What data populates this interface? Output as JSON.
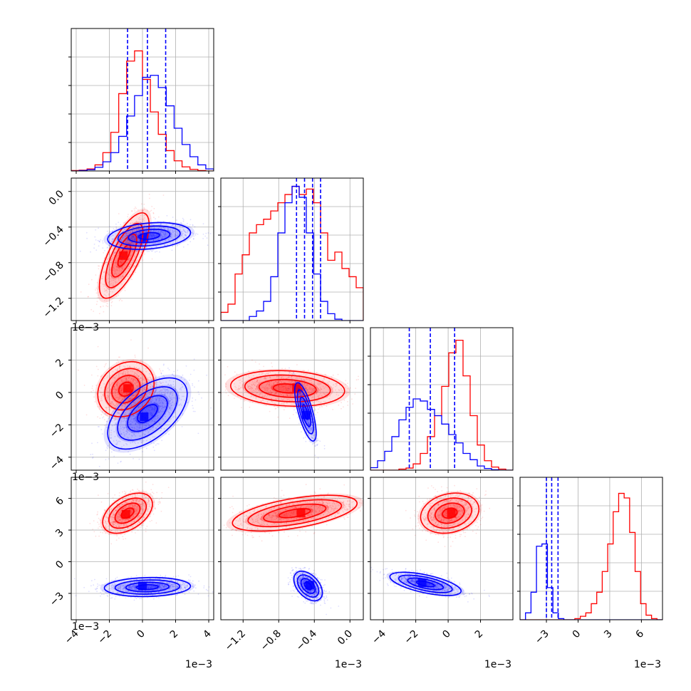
{
  "colors": {
    "series_a": "#ff0000",
    "series_b": "#0000ff",
    "grid": "#b0b0b0"
  },
  "chart_data": {
    "type": "corner",
    "grid": true,
    "params": [
      {
        "range": [
          -4.3,
          4.3
        ],
        "ticks": [
          -4,
          -2,
          0,
          2,
          4
        ],
        "tick_labels": [
          "−4",
          "−2",
          "0",
          "2",
          "4"
        ],
        "offset_label": "1e−3",
        "quantiles_b": [
          -0.9,
          0.3,
          1.4
        ],
        "hist_a": [
          0.02,
          0.04,
          0.1,
          0.3,
          0.9,
          1.9,
          3.8,
          5.4,
          5.9,
          4.5,
          2.9,
          1.8,
          1.0,
          0.5,
          0.2,
          0.08,
          0.02,
          0.0
        ],
        "hist_b": [
          0.0,
          0.02,
          0.06,
          0.18,
          0.45,
          0.9,
          1.7,
          2.7,
          3.7,
          4.6,
          4.7,
          4.1,
          3.2,
          2.1,
          1.3,
          0.7,
          0.3,
          0.1
        ],
        "hist_max": 7
      },
      {
        "range": [
          -1.45,
          0.15
        ],
        "ticks": [
          -1.2,
          -0.8,
          -0.4,
          0.0
        ],
        "tick_labels": [
          "−1.2",
          "−0.8",
          "−0.4",
          "0.0"
        ],
        "offset_label": "1e−3",
        "quantiles_b": [
          -0.6,
          -0.51,
          -0.42,
          -0.33
        ],
        "hist_a": [
          0.3,
          0.6,
          1.7,
          2.4,
          3.2,
          3.5,
          3.7,
          4.0,
          4.3,
          4.6,
          4.9,
          4.6,
          4.8,
          4.3,
          3.2,
          2.2,
          2.5,
          1.9,
          1.6,
          1.2
        ],
        "hist_b": [
          0.0,
          0.0,
          0.0,
          0.0,
          0.15,
          0.35,
          0.7,
          1.6,
          3.2,
          4.3,
          4.9,
          4.5,
          3.2,
          1.7,
          0.7,
          0.25,
          0.05,
          0.0,
          0.0,
          0.0
        ],
        "hist_max": 5.2
      },
      {
        "range": [
          -4.8,
          4.0
        ],
        "ticks": [
          -4,
          -2,
          0,
          2
        ],
        "tick_labels": [
          "−4",
          "−2",
          "0",
          "2"
        ],
        "offset_label": "1e−3",
        "quantiles_b": [
          -2.4,
          -1.1,
          0.4
        ],
        "hist_a": [
          0.0,
          0.0,
          0.0,
          0.0,
          0.05,
          0.1,
          0.3,
          0.8,
          1.6,
          2.6,
          4.0,
          5.6,
          6.2,
          4.5,
          2.6,
          1.2,
          0.45,
          0.15,
          0.05,
          0.0
        ],
        "hist_b": [
          0.12,
          0.45,
          0.9,
          1.6,
          2.4,
          3.0,
          3.4,
          3.3,
          2.9,
          2.6,
          2.2,
          1.7,
          1.3,
          0.8,
          0.5,
          0.2,
          0.08,
          0.02,
          0.0,
          0.0
        ],
        "hist_max": 6.8
      },
      {
        "range": [
          -5.5,
          8.0
        ],
        "ticks": [
          -3,
          0,
          3,
          6
        ],
        "tick_labels": [
          "−3",
          "0",
          "3",
          "6"
        ],
        "offset_label": "1e−3",
        "quantiles_b": [
          -3.0,
          -2.5,
          -1.9
        ],
        "hist_a": [
          0,
          0,
          0,
          0,
          0,
          0,
          0,
          0,
          0,
          0,
          0.05,
          0.15,
          0.3,
          0.7,
          1.2,
          2.1,
          3.3,
          4.7,
          5.5,
          5.3,
          3.8,
          2.1,
          0.7,
          0.2,
          0.05,
          0
        ],
        "hist_b": [
          0,
          0.3,
          1.2,
          3.2,
          3.3,
          1.4,
          0.3,
          0.05,
          0,
          0,
          0,
          0,
          0,
          0,
          0,
          0,
          0,
          0,
          0,
          0,
          0,
          0,
          0,
          0,
          0,
          0
        ],
        "hist_max": 6.2
      }
    ],
    "pairs": [
      {
        "row": 1,
        "col": 0,
        "a": {
          "mean": [
            -1.1,
            -0.72
          ],
          "sd": [
            0.75,
            0.24
          ],
          "rho": 0.72,
          "peak": [
            -1.15,
            -0.72
          ]
        },
        "b": {
          "mean": [
            0.4,
            -0.5
          ],
          "sd": [
            1.25,
            0.075
          ],
          "rho": 0.25,
          "peak": [
            0.1,
            -0.52
          ]
        }
      },
      {
        "row": 2,
        "col": 0,
        "a": {
          "mean": [
            -1.0,
            0.2
          ],
          "sd": [
            0.85,
            0.85
          ],
          "rho": 0.2,
          "peak": [
            -0.9,
            0.25
          ]
        },
        "b": {
          "mean": [
            0.3,
            -1.3
          ],
          "sd": [
            1.2,
            1.1
          ],
          "rho": 0.55,
          "peak": [
            0.1,
            -1.5
          ]
        }
      },
      {
        "row": 2,
        "col": 1,
        "a": {
          "mean": [
            -0.7,
            0.25
          ],
          "sd": [
            0.32,
            0.55
          ],
          "rho": -0.15,
          "peak": [
            -0.6,
            0.3
          ]
        },
        "b": {
          "mean": [
            -0.5,
            -1.2
          ],
          "sd": [
            0.06,
            0.9
          ],
          "rho": -0.72,
          "peak": [
            -0.49,
            -1.4
          ]
        }
      },
      {
        "row": 3,
        "col": 0,
        "a": {
          "mean": [
            -0.9,
            4.6
          ],
          "sd": [
            0.75,
            0.95
          ],
          "rho": 0.45,
          "peak": [
            -1.0,
            4.5
          ]
        },
        "b": {
          "mean": [
            0.3,
            -2.4
          ],
          "sd": [
            1.3,
            0.45
          ],
          "rho": 0.1,
          "peak": [
            0.0,
            -2.3
          ]
        }
      },
      {
        "row": 3,
        "col": 1,
        "a": {
          "mean": [
            -0.62,
            4.6
          ],
          "sd": [
            0.35,
            0.85
          ],
          "rho": 0.55,
          "peak": [
            -0.55,
            4.6
          ]
        },
        "b": {
          "mean": [
            -0.47,
            -2.3
          ],
          "sd": [
            0.08,
            0.7
          ],
          "rho": -0.45,
          "peak": [
            -0.45,
            -2.2
          ]
        }
      },
      {
        "row": 3,
        "col": 2,
        "a": {
          "mean": [
            0.1,
            4.6
          ],
          "sd": [
            0.9,
            0.95
          ],
          "rho": 0.2,
          "peak": [
            0.2,
            4.6
          ]
        },
        "b": {
          "mean": [
            -1.4,
            -2.1
          ],
          "sd": [
            1.1,
            0.55
          ],
          "rho": -0.62,
          "peak": [
            -1.6,
            -2.0
          ]
        }
      }
    ]
  }
}
